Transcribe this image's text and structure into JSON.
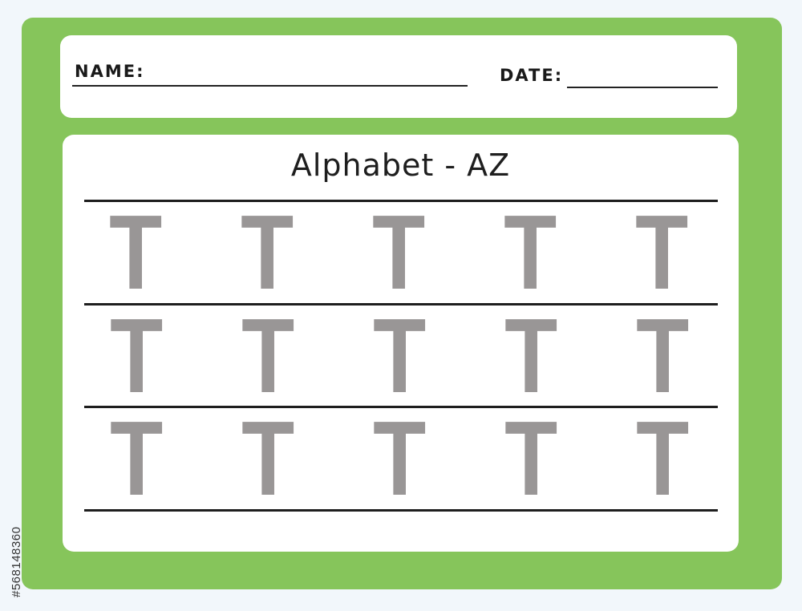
{
  "header": {
    "name_label": "NAME:",
    "date_label": "DATE:"
  },
  "worksheet": {
    "title": "Alphabet - AZ",
    "letter": "T",
    "rows": [
      [
        "T",
        "T",
        "T",
        "T",
        "T"
      ],
      [
        "T",
        "T",
        "T",
        "T",
        "T"
      ],
      [
        "T",
        "T",
        "T",
        "T",
        "T"
      ]
    ],
    "letter_color": "#999696"
  },
  "colors": {
    "frame": "#86c55b",
    "background": "#f2f7fb"
  },
  "watermark": {
    "id": "#568148360"
  }
}
